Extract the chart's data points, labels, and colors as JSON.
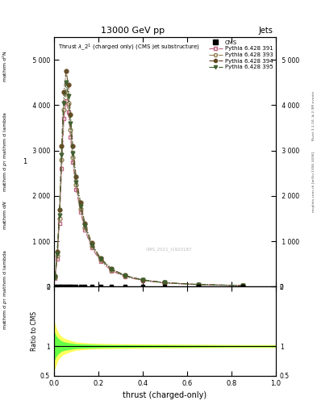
{
  "title_top": "13000 GeV pp",
  "title_right": "Jets",
  "plot_title": "Thrust λ_2¹ (charged only) (CMS jet substructure)",
  "xlabel": "thrust (charged-only)",
  "ylabel_lines": [
    "mathrm d²N",
    "mathrm d pₚ mathrm d lambda"
  ],
  "ylabel_ratio": "Ratio to CMS",
  "watermark": "CMS_2021_I1920187",
  "right_label1": "Rivet 3.1.10; ≥ 2.3M events",
  "right_label2": "mcplots.cern.ch [arXiv:1306.3436]",
  "xlim": [
    0.0,
    1.0
  ],
  "ylim_main": [
    0,
    5500
  ],
  "ylim_ratio": [
    0.5,
    2.0
  ],
  "ratio_yticks": [
    0.5,
    1.0,
    2.0
  ],
  "background_color": "#ffffff",
  "main_yticks": [
    0,
    1000,
    2000,
    3000,
    4000,
    5000
  ],
  "series": [
    {
      "label": "Pythia 6.428 391",
      "color": "#c06080",
      "linestyle": "-.",
      "marker": "s",
      "markerfacecolor": "none",
      "x": [
        0.005,
        0.015,
        0.025,
        0.035,
        0.045,
        0.055,
        0.065,
        0.075,
        0.085,
        0.1,
        0.12,
        0.14,
        0.17,
        0.21,
        0.26,
        0.32,
        0.4,
        0.5,
        0.65,
        0.85
      ],
      "y": [
        180,
        620,
        1400,
        2600,
        3700,
        4100,
        3850,
        3300,
        2750,
        2150,
        1650,
        1250,
        860,
        560,
        350,
        220,
        135,
        80,
        45,
        22
      ]
    },
    {
      "label": "Pythia 6.428 393",
      "color": "#908050",
      "linestyle": "-.",
      "marker": "o",
      "markerfacecolor": "none",
      "x": [
        0.005,
        0.015,
        0.025,
        0.035,
        0.045,
        0.055,
        0.065,
        0.075,
        0.085,
        0.1,
        0.12,
        0.14,
        0.17,
        0.21,
        0.26,
        0.32,
        0.4,
        0.5,
        0.65,
        0.85
      ],
      "y": [
        200,
        680,
        1500,
        2800,
        3900,
        4300,
        4050,
        3450,
        2850,
        2250,
        1720,
        1310,
        900,
        590,
        368,
        232,
        142,
        85,
        47,
        24
      ]
    },
    {
      "label": "Pythia 6.428 394",
      "color": "#604820",
      "linestyle": "-.",
      "marker": "o",
      "markerfacecolor": "#604820",
      "x": [
        0.005,
        0.015,
        0.025,
        0.035,
        0.045,
        0.055,
        0.065,
        0.075,
        0.085,
        0.1,
        0.12,
        0.14,
        0.17,
        0.21,
        0.26,
        0.32,
        0.4,
        0.5,
        0.65,
        0.85
      ],
      "y": [
        230,
        780,
        1700,
        3100,
        4300,
        4750,
        4450,
        3800,
        3100,
        2430,
        1850,
        1400,
        960,
        630,
        395,
        248,
        152,
        90,
        50,
        26
      ]
    },
    {
      "label": "Pythia 6.428 395",
      "color": "#406030",
      "linestyle": "-.",
      "marker": "v",
      "markerfacecolor": "#406030",
      "x": [
        0.005,
        0.015,
        0.025,
        0.035,
        0.045,
        0.055,
        0.065,
        0.075,
        0.085,
        0.1,
        0.12,
        0.14,
        0.17,
        0.21,
        0.26,
        0.32,
        0.4,
        0.5,
        0.65,
        0.85
      ],
      "y": [
        210,
        720,
        1580,
        2900,
        4050,
        4500,
        4200,
        3600,
        2950,
        2300,
        1760,
        1340,
        920,
        608,
        382,
        242,
        148,
        88,
        49,
        25
      ]
    }
  ],
  "x_ratio_yellow": [
    0.0,
    0.005,
    0.01,
    0.015,
    0.02,
    0.03,
    0.04,
    0.05,
    0.065,
    0.08,
    0.1,
    0.13,
    0.17,
    0.22,
    0.3,
    0.45,
    0.65,
    0.85,
    1.0
  ],
  "y_err_yellow": [
    0.4,
    0.38,
    0.32,
    0.27,
    0.23,
    0.18,
    0.15,
    0.13,
    0.11,
    0.09,
    0.07,
    0.06,
    0.05,
    0.045,
    0.04,
    0.035,
    0.03,
    0.025,
    0.025
  ],
  "y_err_green": [
    0.25,
    0.22,
    0.18,
    0.15,
    0.13,
    0.1,
    0.08,
    0.07,
    0.06,
    0.05,
    0.04,
    0.035,
    0.03,
    0.025,
    0.022,
    0.018,
    0.015,
    0.012,
    0.012
  ]
}
